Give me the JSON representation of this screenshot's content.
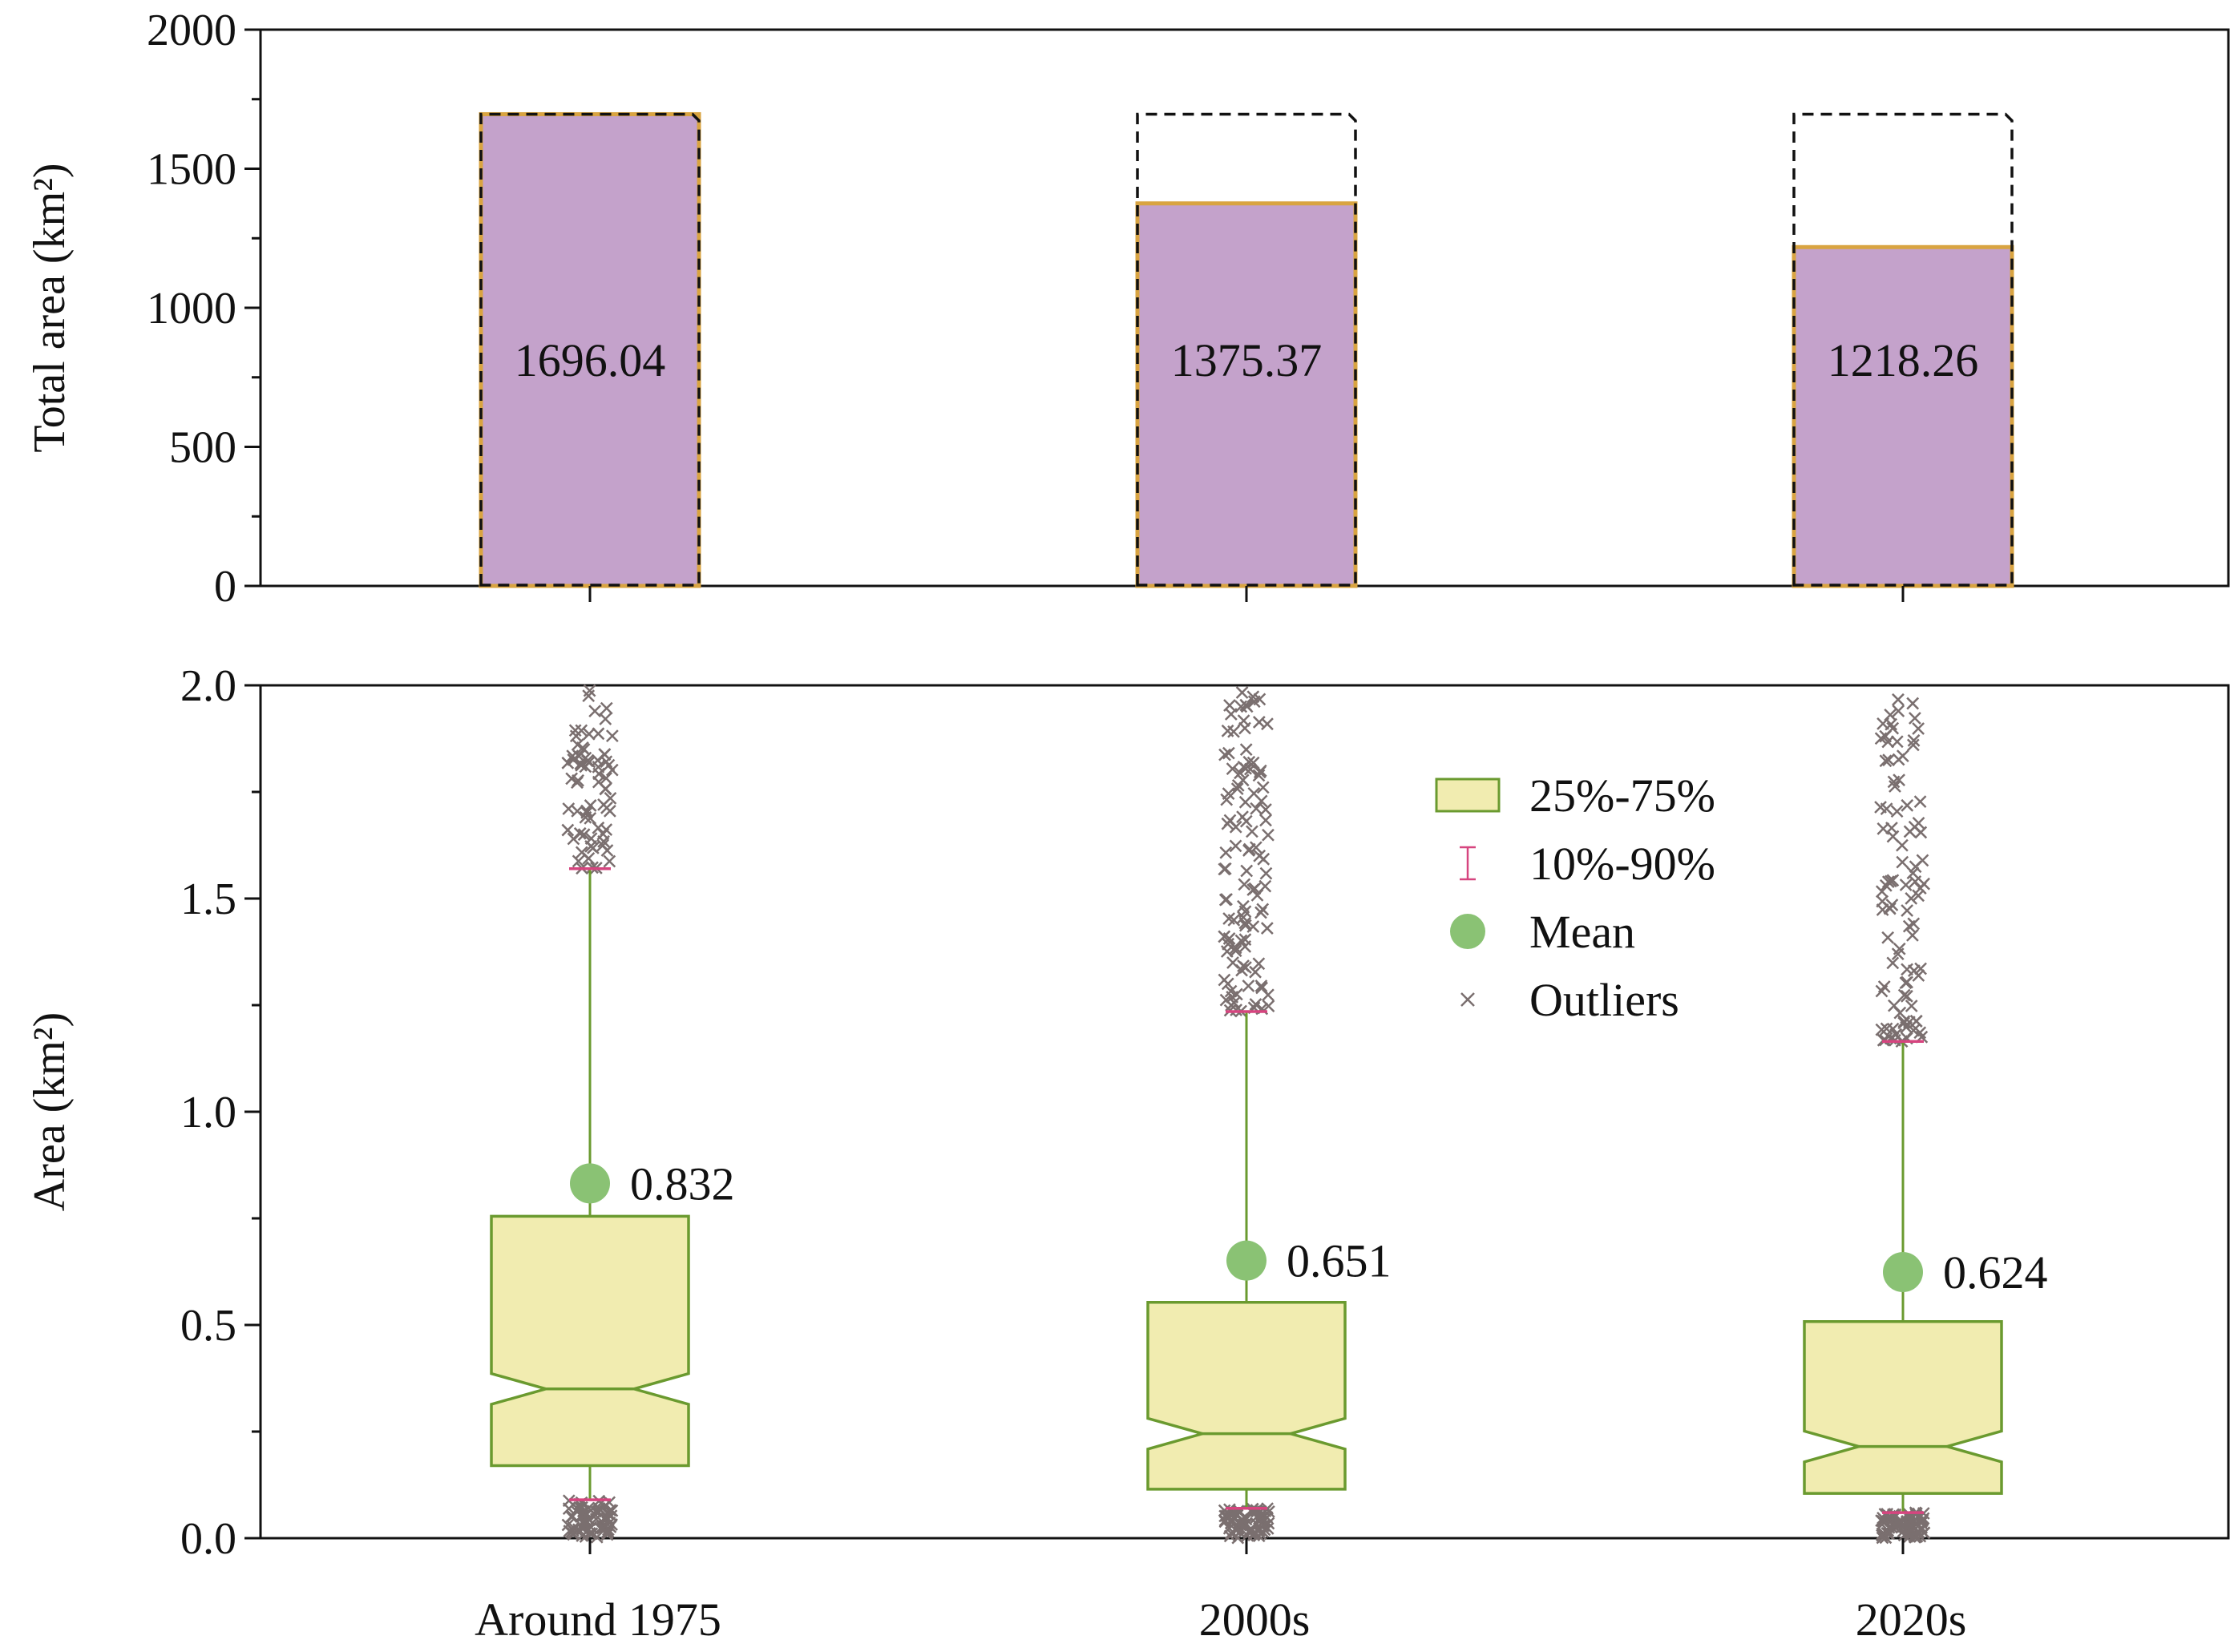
{
  "chart_data": [
    {
      "type": "bar",
      "ylabel": "Total area (km²)",
      "ylim": [
        0,
        2000
      ],
      "yticks": [
        0,
        500,
        1000,
        1500,
        2000
      ],
      "categories": [
        "Around 1975",
        "2000s",
        "2020s"
      ],
      "values": [
        1696.04,
        1375.37,
        1218.26
      ],
      "value_labels": [
        "1696.04",
        "1375.37",
        "1218.26"
      ],
      "reference_outline_value": 1696.04,
      "colors": {
        "bar_fill": "#c4a2cb",
        "bar_edge": "#d9a441",
        "outline": "#111111"
      }
    },
    {
      "type": "box",
      "ylabel": "Area (km²)",
      "ylim": [
        0,
        2.0
      ],
      "yticks": [
        "0.0",
        "0.5",
        "1.0",
        "1.5",
        "2.0"
      ],
      "categories": [
        "Around 1975",
        "2000s",
        "2020s"
      ],
      "boxes": [
        {
          "q1": 0.17,
          "median": 0.35,
          "q3": 0.755,
          "p10": 0.09,
          "p90": 1.57,
          "mean": 0.832,
          "mean_label": "0.832"
        },
        {
          "q1": 0.115,
          "median": 0.245,
          "q3": 0.553,
          "p10": 0.07,
          "p90": 1.235,
          "mean": 0.651,
          "mean_label": "0.651"
        },
        {
          "q1": 0.105,
          "median": 0.215,
          "q3": 0.508,
          "p10": 0.06,
          "p90": 1.165,
          "mean": 0.624,
          "mean_label": "0.624"
        }
      ],
      "legend": {
        "position": "top-right",
        "items": [
          {
            "key": "box",
            "label": "25%-75%"
          },
          {
            "key": "range",
            "label": "10%-90%"
          },
          {
            "key": "mean",
            "label": "Mean"
          },
          {
            "key": "outlier",
            "label": "Outliers"
          }
        ]
      },
      "colors": {
        "box_fill": "#f1ecb0",
        "box_edge": "#6a9a2f",
        "whisker": "#6a9a2f",
        "percentile_cap": "#d6457f",
        "mean": "#8ac274",
        "outlier": "#7a6f6f"
      }
    }
  ]
}
